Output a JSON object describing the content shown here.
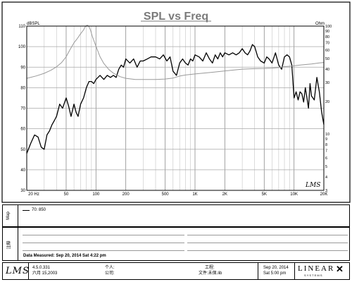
{
  "chart_data": {
    "type": "line",
    "title": "SPL vs Freq",
    "y_left_unit": "dBSPL",
    "y_right_unit": "Ohm",
    "x_scale": "log",
    "x_range": [
      20,
      20000
    ],
    "y_left_range": [
      30,
      110
    ],
    "x_ticks": [
      "20 Hz",
      "50",
      "100",
      "200",
      "500",
      "1K",
      "2K",
      "5K",
      "10K",
      "20K"
    ],
    "x_tick_values": [
      20,
      50,
      100,
      200,
      500,
      1000,
      2000,
      5000,
      10000,
      20000
    ],
    "y_left_ticks": [
      30,
      40,
      50,
      60,
      70,
      80,
      90,
      100,
      110
    ],
    "y_right_ticks": [
      "3",
      "4",
      "5",
      "6",
      "7",
      "8",
      "9",
      "10",
      "20",
      "30",
      "40",
      "50",
      "60",
      "70",
      "80",
      "90",
      "100"
    ],
    "y_right_tick_values": [
      3,
      4,
      5,
      6,
      7,
      8,
      9,
      10,
      20,
      30,
      40,
      50,
      60,
      70,
      80,
      90,
      100
    ],
    "grid": true,
    "series": [
      {
        "name": "SPL",
        "axis": "left",
        "color": "#000000",
        "x": [
          20,
          22,
          24,
          26,
          28,
          30,
          32,
          34,
          36,
          38,
          40,
          43,
          46,
          50,
          53,
          56,
          60,
          63,
          66,
          70,
          75,
          80,
          85,
          90,
          95,
          100,
          110,
          120,
          130,
          140,
          150,
          160,
          170,
          180,
          190,
          200,
          220,
          240,
          260,
          280,
          300,
          330,
          360,
          400,
          440,
          480,
          520,
          560,
          600,
          650,
          700,
          750,
          800,
          850,
          900,
          950,
          1000,
          1100,
          1200,
          1300,
          1400,
          1500,
          1600,
          1700,
          1800,
          1900,
          2000,
          2200,
          2400,
          2600,
          2800,
          3000,
          3200,
          3400,
          3600,
          3800,
          4000,
          4300,
          4600,
          5000,
          5300,
          5600,
          6000,
          6500,
          7000,
          7500,
          8000,
          8500,
          9000,
          9500,
          10000,
          10500,
          11000,
          11500,
          12000,
          12500,
          13000,
          13500,
          14000,
          14500,
          15000,
          16000,
          17000,
          18000,
          19000,
          20000
        ],
        "y": [
          48,
          53,
          57,
          56,
          51,
          50,
          57,
          59,
          62,
          64,
          66,
          72,
          70,
          75,
          71,
          66,
          72,
          68,
          66,
          72,
          75,
          80,
          83,
          83,
          82,
          84,
          86,
          84,
          86,
          85,
          86,
          85,
          89,
          91,
          90,
          94,
          92,
          94,
          90,
          93,
          93,
          94,
          95,
          95,
          94,
          96,
          93,
          95,
          88,
          86,
          92,
          94,
          92,
          91,
          94,
          93,
          96,
          95,
          93,
          97,
          94,
          92,
          96,
          94,
          97,
          95,
          97,
          96,
          97,
          96,
          97,
          99,
          97,
          96,
          98,
          101,
          100,
          95,
          93,
          92,
          95,
          94,
          92,
          97,
          91,
          89,
          95,
          96,
          95,
          91,
          75,
          78,
          74,
          78,
          77,
          73,
          80,
          75,
          70,
          82,
          76,
          74,
          85,
          78,
          68,
          62
        ],
        "labels": {}
      },
      {
        "name": "Impedance",
        "axis": "right",
        "color": "#999999",
        "x": [
          20,
          25,
          30,
          35,
          40,
          45,
          50,
          55,
          60,
          65,
          70,
          75,
          78,
          80,
          82,
          85,
          88,
          92,
          100,
          110,
          120,
          135,
          150,
          175,
          200,
          250,
          300,
          400,
          500,
          600,
          700,
          800,
          1000,
          1500,
          2000,
          3000,
          4000,
          5000,
          6000,
          7000,
          8000,
          9000,
          10000,
          12000,
          15000,
          18000,
          20000
        ],
        "y": [
          32.8,
          34.5,
          36.5,
          38.9,
          41.9,
          45.9,
          52,
          61,
          70,
          77,
          85,
          92,
          99,
          101,
          102,
          99,
          92,
          80,
          65,
          52,
          45,
          39.5,
          36.6,
          34,
          32.8,
          32,
          32,
          32,
          32.3,
          33,
          34.4,
          35.2,
          36,
          37.3,
          38.4,
          39.9,
          40.3,
          40.5,
          40.8,
          41.2,
          42.1,
          42.4,
          42.9,
          43.7,
          44.5,
          45.5,
          46
        ]
      }
    ]
  },
  "legend": {
    "entries": [
      {
        "label": "70: 850"
      }
    ]
  },
  "panels": {
    "map_label": "Map",
    "notes_label": "注释"
  },
  "data_measured": "Data Measured: Sep 20, 2014   Sat  4:22 pm",
  "footer": {
    "logo": "LMS",
    "version": "4.5.0.331",
    "date_cn": "六月 15,2003",
    "person_label": "个人:",
    "company_label": "公司:",
    "project_label": "工程:",
    "file_label": "文件:未保.lib",
    "date_saved": "Sep 20, 2014",
    "time_saved": "Sat  5:00 pm",
    "brand": "LINEAR",
    "brand_sub": "S  Y  S  T  E  M  S"
  },
  "watermark": "LMS"
}
